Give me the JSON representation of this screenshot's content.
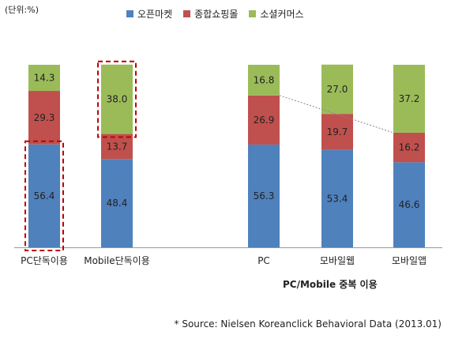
{
  "unit_label": "(단위:%)",
  "legend": [
    {
      "name": "오픈마켓",
      "color": "#4f81bd"
    },
    {
      "name": "종합쇼핑몰",
      "color": "#c0504d"
    },
    {
      "name": "소셜커머스",
      "color": "#9bbb59"
    }
  ],
  "group_label": "PC/Mobile 중복 이용",
  "source_note": "* Source: Nielsen Koreanclick Behavioral Data (2013.01)",
  "chart_data": {
    "type": "bar",
    "stacked": true,
    "categories": [
      "PC단독이용",
      "Mobile단독이용",
      "PC",
      "모바일웹",
      "모바일앱"
    ],
    "series": [
      {
        "name": "오픈마켓",
        "color": "#4f81bd",
        "values": [
          56.4,
          48.4,
          56.3,
          53.4,
          46.6
        ]
      },
      {
        "name": "종합쇼핑몰",
        "color": "#c0504d",
        "values": [
          29.3,
          13.7,
          26.9,
          19.7,
          16.2
        ]
      },
      {
        "name": "소셜커머스",
        "color": "#9bbb59",
        "values": [
          14.3,
          38.0,
          16.8,
          27.0,
          37.2
        ]
      }
    ],
    "ylim": [
      0,
      100
    ],
    "legend_position": "top",
    "highlights": [
      {
        "category": "PC단독이용",
        "series": "오픈마켓"
      },
      {
        "category": "Mobile단독이용",
        "series": "소셜커머스"
      }
    ],
    "connector": {
      "series": "종합쇼핑몰",
      "from": "PC",
      "to": "모바일앱"
    }
  }
}
